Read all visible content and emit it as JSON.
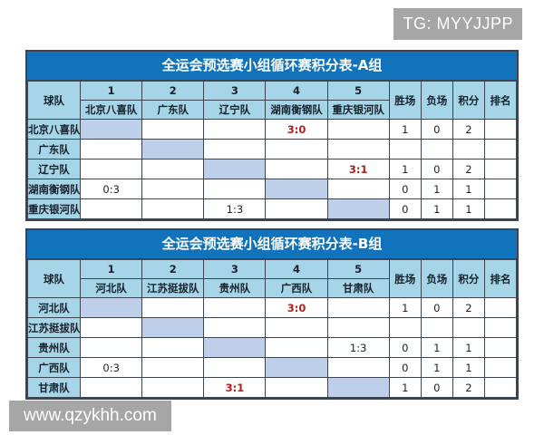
{
  "watermarks": {
    "top_right": "TG: MYYJJPP",
    "bottom_left": "www.qzykhh.com"
  },
  "colors": {
    "title_bar": "#1173bc",
    "header_fill": "#a5d5e6",
    "diagonal_fill": "#bdcfe9",
    "win_score_text": "#b01c1c",
    "border": "#3c4454",
    "badge_bg": "#a6a6a6",
    "badge_text": "#ffffff"
  },
  "tables": [
    {
      "title": "全运会预选赛小组循环赛积分表-A组",
      "corner": "球队",
      "cols": [
        {
          "num": "1",
          "name": "北京八喜队"
        },
        {
          "num": "2",
          "name": "广东队"
        },
        {
          "num": "3",
          "name": "辽宁队"
        },
        {
          "num": "4",
          "name": "湖南衡钢队"
        },
        {
          "num": "5",
          "name": "重庆银河队"
        }
      ],
      "stats": [
        "胜场",
        "负场",
        "积分",
        "排名"
      ],
      "rows": [
        {
          "team": "北京八喜队",
          "scores": [
            {
              "v": "",
              "c": ""
            },
            {
              "v": "",
              "c": ""
            },
            {
              "v": "",
              "c": ""
            },
            {
              "v": "3:0",
              "c": "win"
            },
            {
              "v": "",
              "c": ""
            }
          ],
          "wins": "1",
          "losses": "0",
          "points": "2",
          "rank": ""
        },
        {
          "team": "广东队",
          "scores": [
            {
              "v": "",
              "c": ""
            },
            {
              "v": "",
              "c": ""
            },
            {
              "v": "",
              "c": ""
            },
            {
              "v": "",
              "c": ""
            },
            {
              "v": "",
              "c": ""
            }
          ],
          "wins": "",
          "losses": "",
          "points": "",
          "rank": ""
        },
        {
          "team": "辽宁队",
          "scores": [
            {
              "v": "",
              "c": ""
            },
            {
              "v": "",
              "c": ""
            },
            {
              "v": "",
              "c": ""
            },
            {
              "v": "",
              "c": ""
            },
            {
              "v": "3:1",
              "c": "win"
            }
          ],
          "wins": "1",
          "losses": "0",
          "points": "2",
          "rank": ""
        },
        {
          "team": "湖南衡钢队",
          "scores": [
            {
              "v": "0:3",
              "c": ""
            },
            {
              "v": "",
              "c": ""
            },
            {
              "v": "",
              "c": ""
            },
            {
              "v": "",
              "c": ""
            },
            {
              "v": "",
              "c": ""
            }
          ],
          "wins": "0",
          "losses": "1",
          "points": "1",
          "rank": ""
        },
        {
          "team": "重庆银河队",
          "scores": [
            {
              "v": "",
              "c": ""
            },
            {
              "v": "",
              "c": ""
            },
            {
              "v": "1:3",
              "c": ""
            },
            {
              "v": "",
              "c": ""
            },
            {
              "v": "",
              "c": ""
            }
          ],
          "wins": "0",
          "losses": "1",
          "points": "1",
          "rank": ""
        }
      ]
    },
    {
      "title": "全运会预选赛小组循环赛积分表-B组",
      "corner": "球队",
      "cols": [
        {
          "num": "1",
          "name": "河北队"
        },
        {
          "num": "2",
          "name": "江苏挺拔队"
        },
        {
          "num": "3",
          "name": "贵州队"
        },
        {
          "num": "4",
          "name": "广西队"
        },
        {
          "num": "5",
          "name": "甘肃队"
        }
      ],
      "stats": [
        "胜场",
        "负场",
        "积分",
        "排名"
      ],
      "rows": [
        {
          "team": "河北队",
          "scores": [
            {
              "v": "",
              "c": ""
            },
            {
              "v": "",
              "c": ""
            },
            {
              "v": "",
              "c": ""
            },
            {
              "v": "3:0",
              "c": "win"
            },
            {
              "v": "",
              "c": ""
            }
          ],
          "wins": "1",
          "losses": "0",
          "points": "2",
          "rank": ""
        },
        {
          "team": "江苏挺拔队",
          "scores": [
            {
              "v": "",
              "c": ""
            },
            {
              "v": "",
              "c": ""
            },
            {
              "v": "",
              "c": ""
            },
            {
              "v": "",
              "c": ""
            },
            {
              "v": "",
              "c": ""
            }
          ],
          "wins": "",
          "losses": "",
          "points": "",
          "rank": ""
        },
        {
          "team": "贵州队",
          "scores": [
            {
              "v": "",
              "c": ""
            },
            {
              "v": "",
              "c": ""
            },
            {
              "v": "",
              "c": ""
            },
            {
              "v": "",
              "c": ""
            },
            {
              "v": "1:3",
              "c": ""
            }
          ],
          "wins": "0",
          "losses": "1",
          "points": "1",
          "rank": ""
        },
        {
          "team": "广西队",
          "scores": [
            {
              "v": "0:3",
              "c": ""
            },
            {
              "v": "",
              "c": ""
            },
            {
              "v": "",
              "c": ""
            },
            {
              "v": "",
              "c": ""
            },
            {
              "v": "",
              "c": ""
            }
          ],
          "wins": "0",
          "losses": "1",
          "points": "1",
          "rank": ""
        },
        {
          "team": "甘肃队",
          "scores": [
            {
              "v": "",
              "c": ""
            },
            {
              "v": "",
              "c": ""
            },
            {
              "v": "3:1",
              "c": "win"
            },
            {
              "v": "",
              "c": ""
            },
            {
              "v": "",
              "c": ""
            }
          ],
          "wins": "1",
          "losses": "0",
          "points": "2",
          "rank": ""
        }
      ]
    }
  ]
}
